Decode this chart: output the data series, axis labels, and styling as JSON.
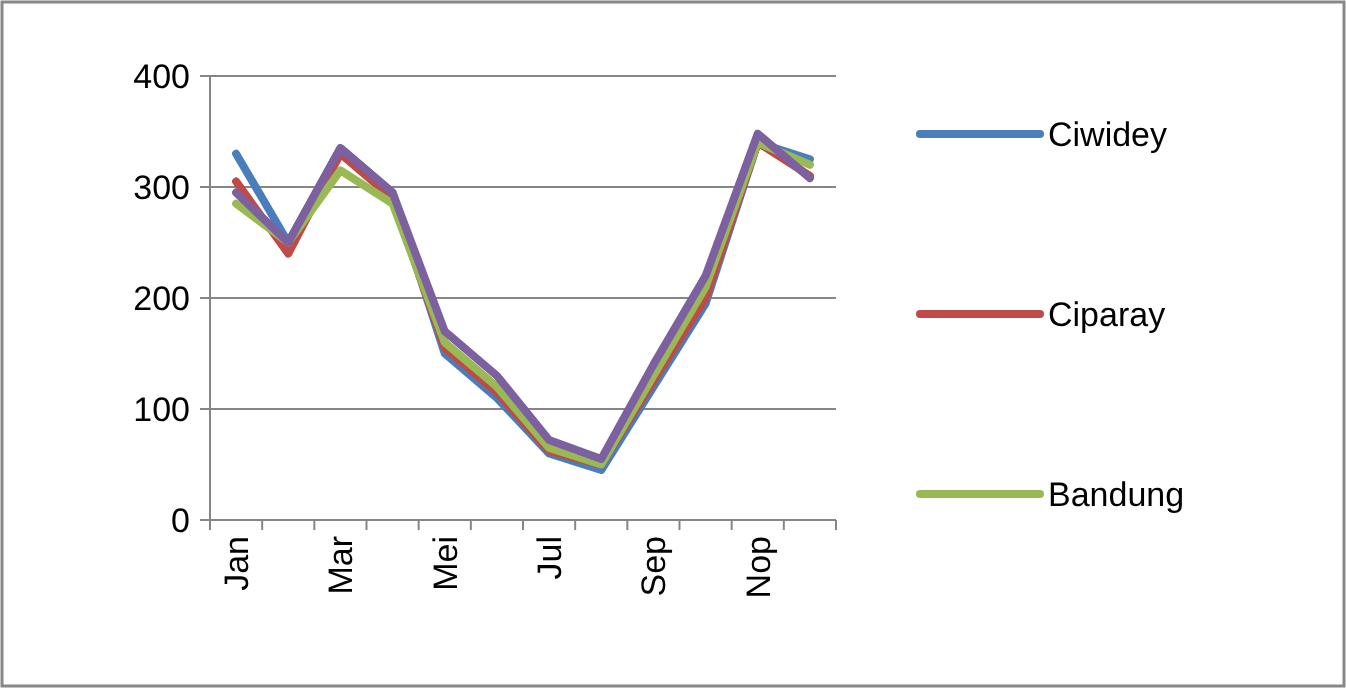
{
  "chart_data": {
    "type": "line",
    "categories": [
      "Jan",
      null,
      "Mar",
      null,
      "Mei",
      null,
      "Jul",
      null,
      "Sep",
      null,
      "Nop",
      null
    ],
    "series": [
      {
        "name": "Ciwidey",
        "color": "#4a7ebb",
        "values": [
          330,
          250,
          335,
          295,
          150,
          110,
          60,
          45,
          120,
          195,
          340,
          325
        ]
      },
      {
        "name": "Ciparay",
        "color": "#be4b48",
        "values": [
          305,
          240,
          330,
          290,
          155,
          115,
          62,
          50,
          125,
          200,
          340,
          310
        ]
      },
      {
        "name": "Bandung",
        "color": "#98b954",
        "values": [
          285,
          250,
          315,
          285,
          160,
          120,
          65,
          50,
          130,
          210,
          340,
          320
        ]
      },
      {
        "color": "#7d60a0",
        "values": [
          295,
          250,
          335,
          295,
          170,
          130,
          72,
          55,
          140,
          220,
          348,
          308
        ]
      }
    ],
    "ylim": [
      0,
      400
    ],
    "yticks": [
      0,
      100,
      200,
      300,
      400
    ],
    "grid": "y",
    "legend": "right",
    "marker": "none",
    "line_style": "solid"
  }
}
